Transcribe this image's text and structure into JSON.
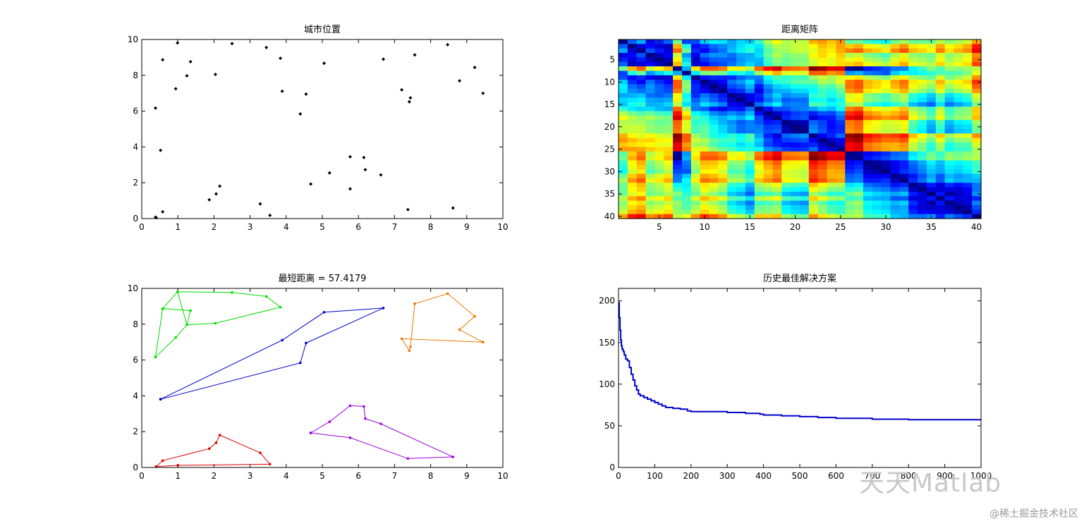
{
  "chart_data": [
    {
      "type": "scatter",
      "title": "城市位置",
      "xlim": [
        0,
        10
      ],
      "ylim": [
        0,
        10
      ],
      "xticks": [
        0,
        1,
        2,
        3,
        4,
        5,
        6,
        7,
        8,
        9,
        10
      ],
      "yticks": [
        0,
        2,
        4,
        6,
        8,
        10
      ],
      "x": [
        0.38,
        0.58,
        0.99,
        0.94,
        1.25,
        1.35,
        0.38,
        0.52,
        2.04,
        2.5,
        3.45,
        3.84,
        3.89,
        4.55,
        4.39,
        5.05,
        6.69,
        7.56,
        7.2,
        7.44,
        7.41,
        8.47,
        9.22,
        8.8,
        9.45,
        0.58,
        0.4,
        1.87,
        2.06,
        2.16,
        3.28,
        3.55,
        4.68,
        5.2,
        5.77,
        5.77,
        6.15,
        6.19,
        6.62,
        7.37,
        8.62
      ],
      "y": [
        6.17,
        8.87,
        9.81,
        7.25,
        7.97,
        8.76,
        0.08,
        3.81,
        8.05,
        9.77,
        9.55,
        8.95,
        7.11,
        6.95,
        5.84,
        8.67,
        8.9,
        9.14,
        7.19,
        6.74,
        6.52,
        9.71,
        8.44,
        7.69,
        7.0,
        0.38,
        0.05,
        1.05,
        1.38,
        1.81,
        0.82,
        0.18,
        1.93,
        2.55,
        3.45,
        1.66,
        3.41,
        2.73,
        2.44,
        0.5,
        0.59
      ]
    },
    {
      "type": "heatmap",
      "title": "距离矩阵",
      "xlim": [
        0.5,
        40.5
      ],
      "ylim": [
        40.5,
        0.5
      ],
      "xticks": [
        5,
        10,
        15,
        20,
        25,
        30,
        35,
        40
      ],
      "yticks": [
        5,
        10,
        15,
        20,
        25,
        30,
        35,
        40
      ],
      "colormap": "jet",
      "size": [
        40,
        40
      ],
      "blocks": [
        1,
        1,
        1,
        1,
        1,
        1,
        1,
        2,
        2,
        2,
        2,
        2,
        2,
        3,
        3,
        3,
        3,
        3,
        3,
        3,
        3,
        3,
        4,
        4,
        4,
        4,
        4,
        4,
        4,
        4,
        4,
        4,
        5,
        5,
        5,
        5,
        5,
        5,
        5,
        5
      ]
    },
    {
      "type": "line",
      "title": "最短距离 = 57.4179",
      "xlim": [
        0,
        10
      ],
      "ylim": [
        0,
        10
      ],
      "xticks": [
        0,
        1,
        2,
        3,
        4,
        5,
        6,
        7,
        8,
        9,
        10
      ],
      "yticks": [
        0,
        2,
        4,
        6,
        8,
        10
      ],
      "series": [
        {
          "color": "#00dd00",
          "x": [
            0.38,
            0.58,
            0.99,
            2.5,
            3.45,
            3.84,
            2.04,
            1.25,
            0.94,
            0.38,
            0.38,
            0.58,
            1.35,
            1.25,
            0.99
          ],
          "y": [
            6.17,
            8.87,
            9.81,
            9.77,
            9.55,
            8.95,
            8.05,
            7.97,
            7.25,
            6.17,
            6.17,
            8.87,
            8.76,
            7.97,
            9.81
          ]
        },
        {
          "color": "#0000cc",
          "x": [
            0.52,
            3.89,
            5.05,
            6.69,
            4.55,
            4.39,
            0.52
          ],
          "y": [
            3.81,
            7.11,
            8.67,
            8.9,
            6.95,
            5.84,
            3.81
          ]
        },
        {
          "color": "#ee7700",
          "x": [
            7.56,
            8.47,
            9.22,
            8.8,
            9.45,
            7.2,
            7.41,
            7.44,
            7.56
          ],
          "y": [
            9.14,
            9.71,
            8.44,
            7.69,
            7.0,
            7.19,
            6.52,
            6.74,
            9.14
          ]
        },
        {
          "color": "#dd0000",
          "x": [
            0.4,
            0.58,
            1.87,
            2.06,
            2.16,
            3.28,
            3.55,
            1.0,
            0.4
          ],
          "y": [
            0.05,
            0.38,
            1.05,
            1.38,
            1.81,
            0.82,
            0.18,
            0.12,
            0.05
          ]
        },
        {
          "color": "#9900dd",
          "x": [
            4.68,
            5.2,
            5.77,
            6.15,
            6.19,
            6.62,
            8.62,
            7.37,
            5.77,
            4.68
          ],
          "y": [
            1.93,
            2.55,
            3.45,
            3.41,
            2.73,
            2.44,
            0.59,
            0.5,
            1.66,
            1.93
          ]
        }
      ]
    },
    {
      "type": "line",
      "title": "历史最佳解决方案",
      "xlim": [
        0,
        1000
      ],
      "ylim": [
        0,
        215
      ],
      "xticks": [
        0,
        100,
        200,
        300,
        400,
        500,
        600,
        700,
        800,
        900,
        1000
      ],
      "yticks": [
        0,
        50,
        100,
        150,
        200
      ],
      "series": [
        {
          "color": "#0000cc",
          "x": [
            0,
            2,
            4,
            6,
            8,
            10,
            13,
            16,
            20,
            25,
            30,
            35,
            40,
            45,
            50,
            55,
            60,
            70,
            80,
            90,
            100,
            110,
            120,
            130,
            150,
            170,
            190,
            200,
            250,
            300,
            350,
            390,
            400,
            450,
            500,
            550,
            600,
            650,
            700,
            750,
            800,
            850,
            900,
            950,
            1000
          ],
          "y": [
            198,
            180,
            165,
            153,
            146,
            142,
            139,
            135,
            130,
            128,
            120,
            112,
            105,
            98,
            93,
            88,
            86,
            84,
            82,
            80,
            78,
            76,
            74,
            72,
            71,
            70,
            68,
            67,
            67,
            66,
            65,
            64,
            63,
            62,
            61,
            60,
            59,
            59,
            58,
            58,
            57.4179,
            57.4179,
            57.4179,
            57.4179,
            57.4179
          ]
        }
      ]
    }
  ],
  "watermark": {
    "main": "天天Matlab",
    "sub": "@稀土掘金技术社区"
  }
}
